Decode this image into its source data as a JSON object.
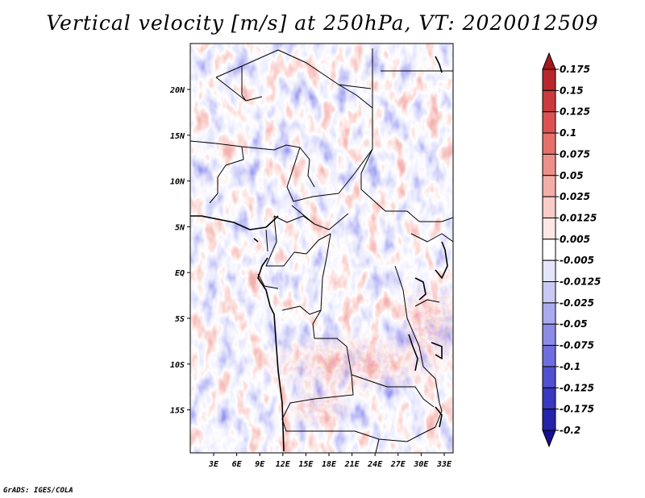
{
  "title": "Vertical velocity [m/s] at 250hPa, VT: 2020012509",
  "credit": "GrADS: IGES/COLA",
  "lat_labels": [
    "20N",
    "15N",
    "10N",
    "5N",
    "EQ",
    "5S",
    "10S",
    "15S"
  ],
  "lon_labels": [
    "3E",
    "6E",
    "9E",
    "12E",
    "15E",
    "18E",
    "21E",
    "24E",
    "27E",
    "30E",
    "33E"
  ],
  "colorbar": {
    "labels": [
      "0.175",
      "0.15",
      "0.125",
      "0.1",
      "0.075",
      "0.05",
      "0.025",
      "0.0125",
      "0.005",
      "-0.005",
      "-0.0125",
      "-0.025",
      "-0.05",
      "-0.075",
      "-0.1",
      "-0.125",
      "-0.175",
      "-0.2"
    ],
    "colors": [
      "#a01a1e",
      "#b9262b",
      "#cc3a3c",
      "#dc5252",
      "#e6716c",
      "#ee908a",
      "#f4aea8",
      "#f9cdc8",
      "#fde8e6",
      "#ffffff",
      "#e6e6fb",
      "#c9c9f4",
      "#aaaaee",
      "#8c8ce6",
      "#6e6ede",
      "#5050d2",
      "#3838c0",
      "#2424aa",
      "#160f90"
    ]
  }
}
